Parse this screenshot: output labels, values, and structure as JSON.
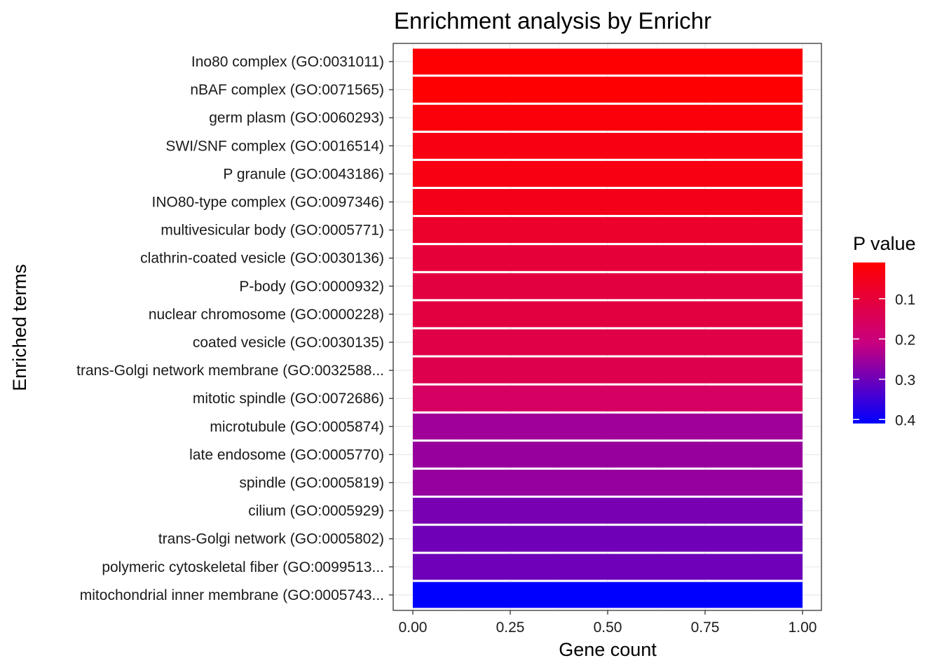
{
  "chart_data": {
    "type": "bar",
    "orientation": "horizontal",
    "title": "Enrichment analysis by Enrichr",
    "xlabel": "Gene count",
    "ylabel": "Enriched terms",
    "xlim": [
      0,
      1
    ],
    "x_ticks": [
      {
        "value": 0,
        "label": "0.00"
      },
      {
        "value": 0.25,
        "label": "0.25"
      },
      {
        "value": 0.5,
        "label": "0.50"
      },
      {
        "value": 0.75,
        "label": "0.75"
      },
      {
        "value": 1,
        "label": "1.00"
      }
    ],
    "grid": true,
    "legend": {
      "title": "P value",
      "position": "right",
      "type": "colorbar",
      "range": [
        0.01,
        0.41
      ],
      "low_color": "#ff0000",
      "high_color": "#0000ff",
      "ticks": [
        {
          "value": 0.1,
          "label": "0.1"
        },
        {
          "value": 0.2,
          "label": "0.2"
        },
        {
          "value": 0.3,
          "label": "0.3"
        },
        {
          "value": 0.4,
          "label": "0.4"
        }
      ]
    },
    "categories": [
      "Ino80 complex (GO:0031011)",
      "nBAF complex (GO:0071565)",
      "germ plasm (GO:0060293)",
      "SWI/SNF complex (GO:0016514)",
      "P granule (GO:0043186)",
      "INO80-type complex (GO:0097346)",
      "multivesicular body (GO:0005771)",
      "clathrin-coated vesicle (GO:0030136)",
      "P-body (GO:0000932)",
      "nuclear chromosome (GO:0000228)",
      "coated vesicle (GO:0030135)",
      "trans-Golgi network membrane (GO:0032588...",
      "mitotic spindle (GO:0072686)",
      "microtubule (GO:0005874)",
      "late endosome (GO:0005770)",
      "spindle (GO:0005819)",
      "cilium (GO:0005929)",
      "trans-Golgi network (GO:0005802)",
      "polymeric cytoskeletal fiber (GO:0099513...",
      "mitochondrial inner membrane (GO:0005743..."
    ],
    "values": [
      1,
      1,
      1,
      1,
      1,
      1,
      1,
      1,
      1,
      1,
      1,
      1,
      1,
      1,
      1,
      1,
      1,
      1,
      1,
      1
    ],
    "p_values": [
      0.013,
      0.013,
      0.025,
      0.037,
      0.037,
      0.049,
      0.08,
      0.102,
      0.112,
      0.112,
      0.122,
      0.132,
      0.162,
      0.25,
      0.258,
      0.26,
      0.29,
      0.298,
      0.3,
      0.41
    ]
  }
}
